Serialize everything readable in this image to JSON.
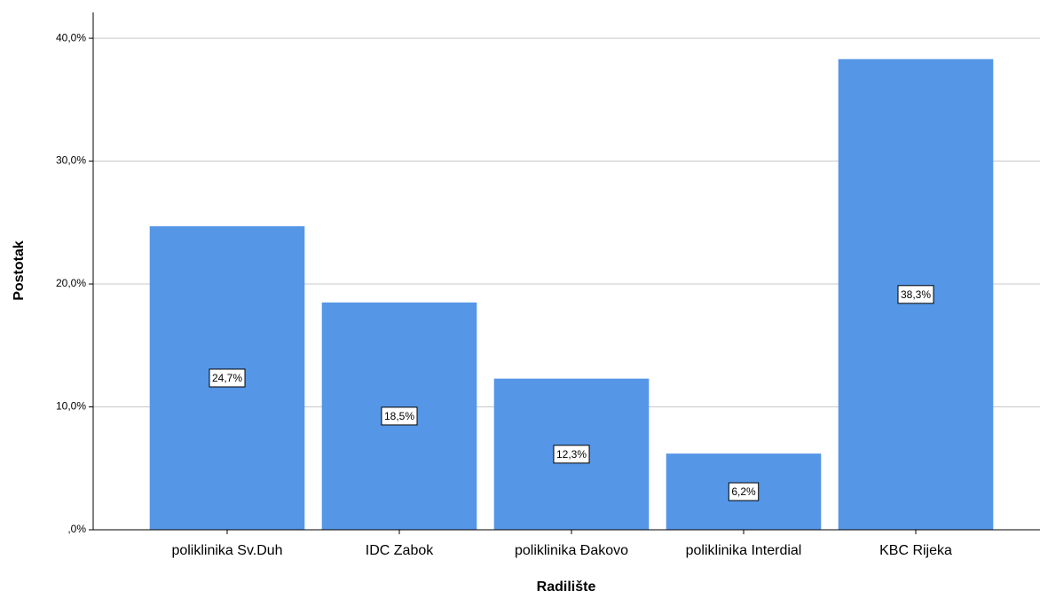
{
  "chart_data": {
    "type": "bar",
    "x_label": "Radilište",
    "y_label": "Postotak",
    "categories": [
      "poliklinika Sv.Duh",
      "IDC Zabok",
      "poliklinika Đakovo",
      "poliklinika Interdial",
      "KBC Rijeka"
    ],
    "values": [
      24.7,
      18.5,
      12.3,
      6.2,
      38.3
    ],
    "value_labels": [
      "24,7%",
      "18,5%",
      "12,3%",
      "6,2%",
      "38,3%"
    ],
    "color": "#5596e6",
    "ylim": [
      0,
      42.1
    ],
    "yticks": [
      {
        "value": 0,
        "label": ",0%"
      },
      {
        "value": 10,
        "label": "10,0%"
      },
      {
        "value": 20,
        "label": "20,0%"
      },
      {
        "value": 30,
        "label": "30,0%"
      },
      {
        "value": 40,
        "label": "40,0%"
      }
    ],
    "grid": true
  }
}
